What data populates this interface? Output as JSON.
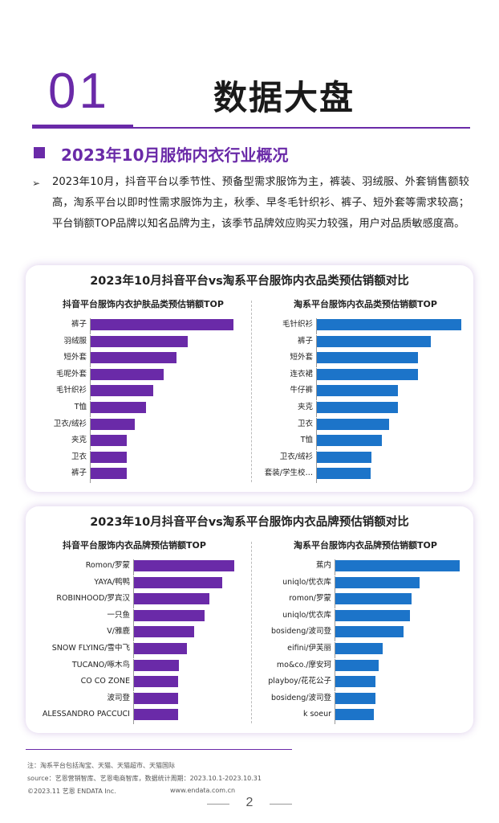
{
  "header": {
    "number": "01",
    "title": "数据大盘"
  },
  "section": {
    "title": "2023年10月服饰内衣行业概况",
    "paragraph": "2023年10月，抖音平台以季节性、预备型需求服饰为主，裤装、羽绒服、外套销售额较高，淘系平台以即时性需求服饰为主，秋季、早冬毛针织衫、裤子、短外套等需求较高；平台销额TOP品牌以知名品牌为主，该季节品牌效应购买力较强，用户对品质敏感度高。"
  },
  "chart_data": [
    {
      "type": "bar",
      "orientation": "horizontal",
      "title": "2023年10月抖音平台vs淘系平台服饰内衣品类预估销额对比",
      "subtitle": "抖音平台服饰内衣护肤品类预估销额TOP",
      "color": "#6a2aa8",
      "categories": [
        "裤子",
        "羽绒服",
        "短外套",
        "毛呢外套",
        "毛针织衫",
        "T恤",
        "卫衣/绒衫",
        "夹克",
        "卫衣",
        "裤子"
      ],
      "values": [
        100,
        68,
        60,
        51,
        44,
        39,
        31,
        25,
        25,
        25
      ]
    },
    {
      "type": "bar",
      "orientation": "horizontal",
      "title": "2023年10月抖音平台vs淘系平台服饰内衣品类预估销额对比",
      "subtitle": "淘系平台服饰内衣品类预估销额TOP",
      "color": "#1c74c9",
      "categories": [
        "毛针织衫",
        "裤子",
        "短外套",
        "连衣裙",
        "牛仔裤",
        "夹克",
        "卫衣",
        "T恤",
        "卫衣/绒衫",
        "套装/学生校…"
      ],
      "values": [
        100,
        79,
        70,
        70,
        56,
        56,
        50,
        45,
        38,
        37
      ]
    },
    {
      "type": "bar",
      "orientation": "horizontal",
      "title": "2023年10月抖音平台vs淘系平台服饰内衣品牌预估销额对比",
      "subtitle": "抖音平台服饰内衣品牌预估销额TOP",
      "color": "#6a2aa8",
      "categories": [
        "Romon/罗蒙",
        "YAYA/鸭鸭",
        "ROBINHOOD/罗宾汉",
        "一只鱼",
        "V/雅鹿",
        "SNOW FLYING/雪中飞",
        "TUCANO/啄木鸟",
        "CO CO ZONE",
        "波司登",
        "ALESSANDRO PACCUCI"
      ],
      "values": [
        100,
        88,
        75,
        70,
        60,
        53,
        45,
        44,
        44,
        44
      ]
    },
    {
      "type": "bar",
      "orientation": "horizontal",
      "title": "2023年10月抖音平台vs淘系平台服饰内衣品牌预估销额对比",
      "subtitle": "淘系平台服饰内衣品牌预估销额TOP",
      "color": "#1c74c9",
      "categories": [
        "蕉内",
        "uniqlo/优衣库",
        "romon/罗蒙",
        "uniqlo/优衣库",
        "bosideng/波司登",
        "eifini/伊芙丽",
        "mo&co./摩安珂",
        "playboy/花花公子",
        "bosideng/波司登",
        "k soeur"
      ],
      "values": [
        100,
        68,
        61,
        60,
        55,
        38,
        35,
        32,
        32,
        31
      ]
    }
  ],
  "cards": {
    "category_title": "2023年10月抖音平台vs淘系平台服饰内衣品类预估销额对比",
    "brand_title": "2023年10月抖音平台vs淘系平台服饰内衣品牌预估销额对比"
  },
  "footer": {
    "note": "注：淘系平台包括淘宝、天猫、天猫超市、天猫国际",
    "source": "source：艺恩营销智库、艺恩电商智库，数据统计周期：2023.10.1-2023.10.31",
    "copyright": "©2023.11 艺恩 ENDATA Inc.",
    "website": "www.endata.com.cn",
    "page": "2"
  },
  "colors": {
    "brand_purple": "#6a2aa8",
    "brand_blue": "#1c74c9"
  }
}
